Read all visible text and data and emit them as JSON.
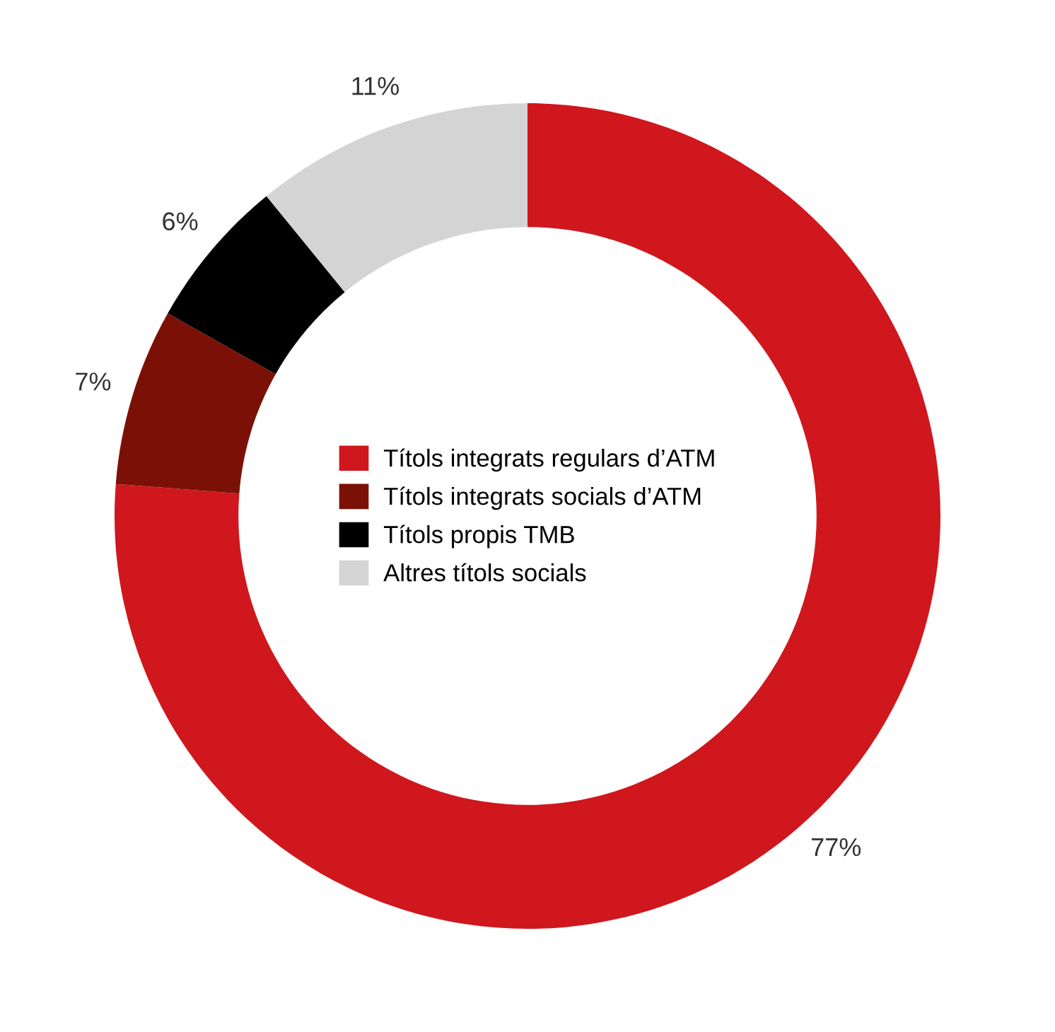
{
  "chart_data": {
    "type": "donut",
    "categories": [
      "Títols integrats regulars d’ATM",
      "Títols integrats socials d’ATM",
      "Títols propis TMB",
      "Altres títols socials"
    ],
    "values": [
      77,
      7,
      6,
      11
    ],
    "value_labels": [
      "77%",
      "7%",
      "6%",
      "11%"
    ],
    "colors": [
      "#cf171d",
      "#7b1106",
      "#000000",
      "#d4d4d4"
    ],
    "legend": "center"
  }
}
